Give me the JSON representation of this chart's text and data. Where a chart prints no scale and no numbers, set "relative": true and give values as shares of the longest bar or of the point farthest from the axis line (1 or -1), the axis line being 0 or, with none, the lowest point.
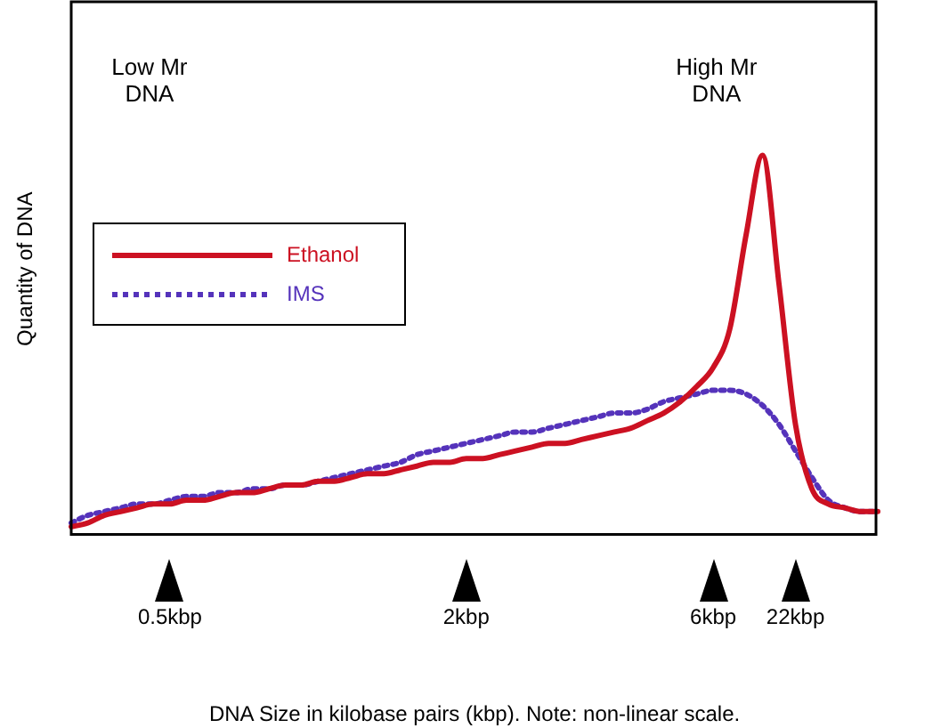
{
  "chart_data": {
    "type": "line",
    "relative": true,
    "xlabel": "DNA Size in kilobase pairs (kbp). Note: non-linear scale.",
    "ylabel": "Quantity of DNA",
    "categories": [
      null,
      null,
      null,
      null,
      null,
      null,
      "0.5kbp",
      null,
      null,
      null,
      null,
      null,
      null,
      null,
      null,
      null,
      null,
      null,
      null,
      null,
      null,
      null,
      null,
      null,
      "2kbp",
      null,
      null,
      null,
      null,
      null,
      null,
      null,
      null,
      null,
      null,
      null,
      null,
      null,
      null,
      "6kbp",
      null,
      null,
      null,
      null,
      "22kbp",
      null,
      null,
      null,
      null,
      null
    ],
    "series": [
      {
        "name": "Ethanol",
        "color": "#cc1122",
        "line_style": "solid",
        "values": [
          0.02,
          0.03,
          0.05,
          0.06,
          0.07,
          0.08,
          0.08,
          0.09,
          0.09,
          0.1,
          0.11,
          0.11,
          0.12,
          0.13,
          0.13,
          0.14,
          0.14,
          0.15,
          0.16,
          0.16,
          0.17,
          0.18,
          0.19,
          0.19,
          0.2,
          0.2,
          0.21,
          0.22,
          0.23,
          0.24,
          0.24,
          0.25,
          0.26,
          0.27,
          0.28,
          0.3,
          0.32,
          0.35,
          0.39,
          0.44,
          0.54,
          0.79,
          1,
          0.66,
          0.29,
          0.12,
          0.08,
          0.07,
          0.06,
          0.06
        ]
      },
      {
        "name": "IMS",
        "color": "#5533bb",
        "line_style": "dotted",
        "values": [
          0.03,
          0.05,
          0.06,
          0.07,
          0.08,
          0.08,
          0.09,
          0.1,
          0.1,
          0.11,
          0.11,
          0.12,
          0.12,
          0.13,
          0.13,
          0.14,
          0.15,
          0.16,
          0.17,
          0.18,
          0.19,
          0.21,
          0.22,
          0.23,
          0.24,
          0.25,
          0.26,
          0.27,
          0.27,
          0.28,
          0.29,
          0.3,
          0.31,
          0.32,
          0.32,
          0.33,
          0.35,
          0.36,
          0.37,
          0.38,
          0.38,
          0.37,
          0.34,
          0.29,
          0.22,
          0.15,
          0.09,
          0.07,
          0.06,
          0.06
        ]
      }
    ],
    "annotations": [
      "Low Mr\nDNA",
      "High Mr\nDNA"
    ],
    "legend": "left",
    "grid": false,
    "marker": "none"
  }
}
